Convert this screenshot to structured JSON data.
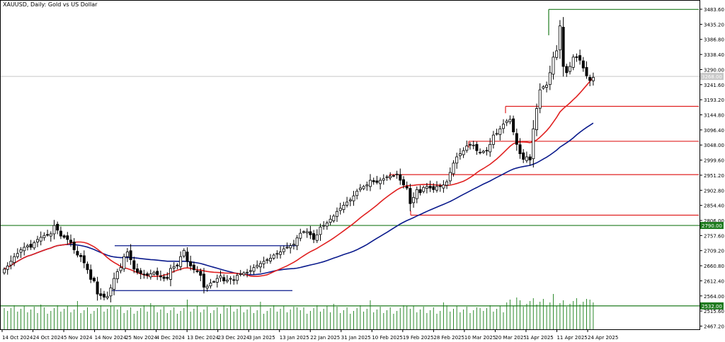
{
  "chart_data": {
    "type": "candlestick",
    "title": "XAUUSD, Daily: Gold vs US Dollar",
    "y_ticks": [
      "3483.60",
      "3435.20",
      "3386.80",
      "3338.40",
      "3290.00",
      "3241.60",
      "3193.20",
      "3144.80",
      "3096.40",
      "3048.00",
      "2999.60",
      "2951.20",
      "2902.80",
      "2854.40",
      "2806.00",
      "2757.60",
      "2709.20",
      "2660.80",
      "2612.40",
      "2564.00",
      "2515.60",
      "2467.20"
    ],
    "y_range": [
      2457,
      3495
    ],
    "highlighted_labels": [
      {
        "text": "3268.00",
        "value": 3268,
        "color": "#c8c8c8"
      },
      {
        "text": "2790.00",
        "value": 2790,
        "color": "#1e7a1e"
      },
      {
        "text": "2532.00",
        "value": 2532,
        "color": "#1e7a1e"
      }
    ],
    "x_tick_labels": [
      "14 Oct 2024",
      "24 Oct 2024",
      "5 Nov 2024",
      "14 Nov 2024",
      "25 Nov 2024",
      "4 Dec 2024",
      "13 Dec 2024",
      "23 Dec 2024",
      "3 Jan 2025",
      "13 Jan 2025",
      "22 Jan 2025",
      "31 Jan 2025",
      "10 Feb 2025",
      "19 Feb 2025",
      "28 Feb 2025",
      "10 Mar 2025",
      "20 Mar 2025",
      "1 Apr 2025",
      "11 Apr 2025",
      "24 Apr 2025"
    ],
    "close": [
      2650,
      2660,
      2675,
      2690,
      2700,
      2712,
      2720,
      2725,
      2720,
      2735,
      2745,
      2752,
      2758,
      2760,
      2763,
      2790,
      2775,
      2756,
      2752,
      2745,
      2735,
      2712,
      2695,
      2690,
      2670,
      2648,
      2617,
      2612,
      2570,
      2565,
      2560,
      2562,
      2590,
      2620,
      2642,
      2655,
      2690,
      2705,
      2680,
      2650,
      2640,
      2636,
      2633,
      2630,
      2635,
      2640,
      2632,
      2625,
      2620,
      2620,
      2652,
      2658,
      2660,
      2690,
      2710,
      2675,
      2660,
      2648,
      2643,
      2630,
      2592,
      2595,
      2605,
      2610,
      2620,
      2628,
      2612,
      2615,
      2620,
      2614,
      2630,
      2635,
      2638,
      2640,
      2645,
      2655,
      2662,
      2668,
      2675,
      2680,
      2685,
      2695,
      2700,
      2705,
      2715,
      2720,
      2725,
      2730,
      2750,
      2765,
      2770,
      2770,
      2760,
      2745,
      2760,
      2785,
      2790,
      2798,
      2810,
      2820,
      2835,
      2845,
      2855,
      2865,
      2872,
      2885,
      2900,
      2910,
      2915,
      2920,
      2935,
      2930,
      2928,
      2935,
      2940,
      2946,
      2948,
      2950,
      2955,
      2935,
      2920,
      2910,
      2860,
      2880,
      2905,
      2895,
      2912,
      2915,
      2910,
      2905,
      2915,
      2915,
      2920,
      2930,
      2960,
      2990,
      3010,
      3020,
      3030,
      3045,
      3050,
      3048,
      3030,
      3025,
      3028,
      3030,
      3050,
      3080,
      3085,
      3100,
      3115,
      3125,
      3130,
      3090,
      3050,
      3020,
      3002,
      3010,
      3000,
      3100,
      3165,
      3225,
      3235,
      3240,
      3280,
      3330,
      3350,
      3430,
      3300,
      3280,
      3300,
      3330,
      3330,
      3320,
      3295,
      3270,
      3255,
      3265
    ]
  }
}
